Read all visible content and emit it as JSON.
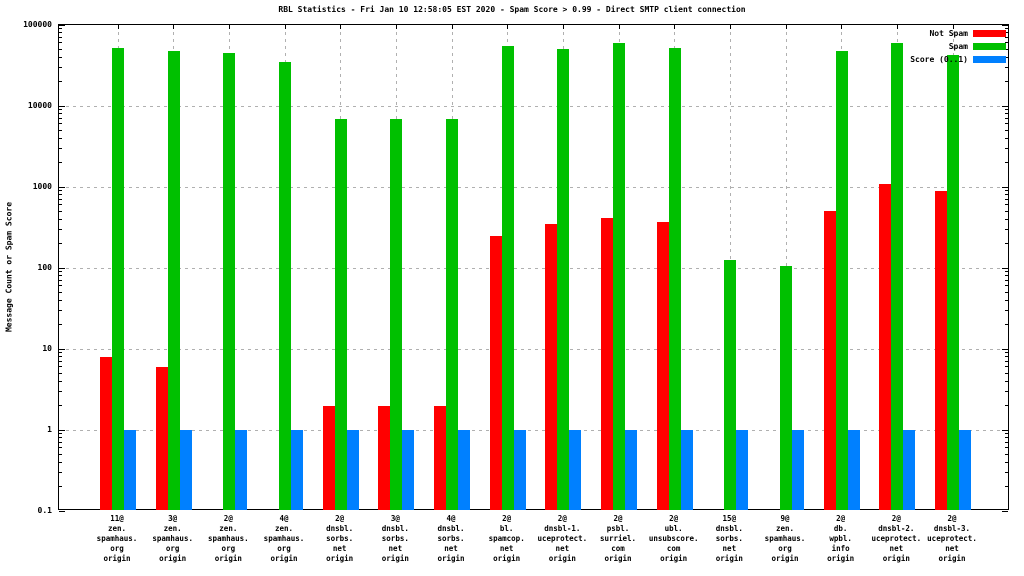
{
  "window": {
    "background": "#ffffff"
  },
  "chart_data": {
    "type": "bar",
    "title": "RBL Statistics - Fri Jan 10 12:58:05 EST 2020 - Spam Score > 0.99 - Direct SMTP client connection",
    "ylabel": "Message Count or Spam Score",
    "xlabel": "",
    "yscale": "log",
    "ylim": [
      0.1,
      100000
    ],
    "yticks": [
      100000,
      10000,
      1000,
      100,
      10,
      1,
      0.1
    ],
    "ytick_labels": [
      "100000",
      "10000",
      "1000",
      "100",
      "10",
      "1",
      "0.1"
    ],
    "grid": true,
    "grid_color": "#b0b0b0",
    "legend": {
      "position": "top-right",
      "entries": [
        {
          "label": "Not Spam",
          "color": "#ff0000"
        },
        {
          "label": "Spam",
          "color": "#00c000"
        },
        {
          "label": "Score (0..1)",
          "color": "#0080ff"
        }
      ]
    },
    "categories": [
      [
        "11@",
        "zen.",
        "spamhaus.",
        "org",
        "origin"
      ],
      [
        "3@",
        "zen.",
        "spamhaus.",
        "org",
        "origin"
      ],
      [
        "2@",
        "zen.",
        "spamhaus.",
        "org",
        "origin"
      ],
      [
        "4@",
        "zen.",
        "spamhaus.",
        "org",
        "origin"
      ],
      [
        "2@",
        "dnsbl.",
        "sorbs.",
        "net",
        "origin"
      ],
      [
        "3@",
        "dnsbl.",
        "sorbs.",
        "net",
        "origin"
      ],
      [
        "4@",
        "dnsbl.",
        "sorbs.",
        "net",
        "origin"
      ],
      [
        "2@",
        "bl.",
        "spamcop.",
        "net",
        "origin"
      ],
      [
        "2@",
        "dnsbl-1.",
        "uceprotect.",
        "net",
        "origin"
      ],
      [
        "2@",
        "psbl.",
        "surriel.",
        "com",
        "origin"
      ],
      [
        "2@",
        "ubl.",
        "unsubscore.",
        "com",
        "origin"
      ],
      [
        "15@",
        "dnsbl.",
        "sorbs.",
        "net",
        "origin"
      ],
      [
        "9@",
        "zen.",
        "spamhaus.",
        "org",
        "origin"
      ],
      [
        "2@",
        "db.",
        "wpbl.",
        "info",
        "origin"
      ],
      [
        "2@",
        "dnsbl-2.",
        "uceprotect.",
        "net",
        "origin"
      ],
      [
        "2@",
        "dnsbl-3.",
        "uceprotect.",
        "net",
        "origin"
      ]
    ],
    "series": [
      {
        "name": "Not Spam",
        "color": "#ff0000",
        "values": [
          8,
          6,
          null,
          null,
          2,
          2,
          2,
          250,
          350,
          410,
          370,
          null,
          null,
          500,
          1100,
          900
        ]
      },
      {
        "name": "Spam",
        "color": "#00c000",
        "values": [
          52000,
          48000,
          45000,
          35000,
          7000,
          7000,
          7000,
          55000,
          50000,
          60000,
          52000,
          125,
          105,
          48000,
          60000,
          43000
        ]
      },
      {
        "name": "Score (0..1)",
        "color": "#0080ff",
        "values": [
          1,
          1,
          1,
          1,
          1,
          1,
          1,
          1,
          1,
          1,
          1,
          1,
          1,
          1,
          1,
          1
        ]
      }
    ]
  }
}
